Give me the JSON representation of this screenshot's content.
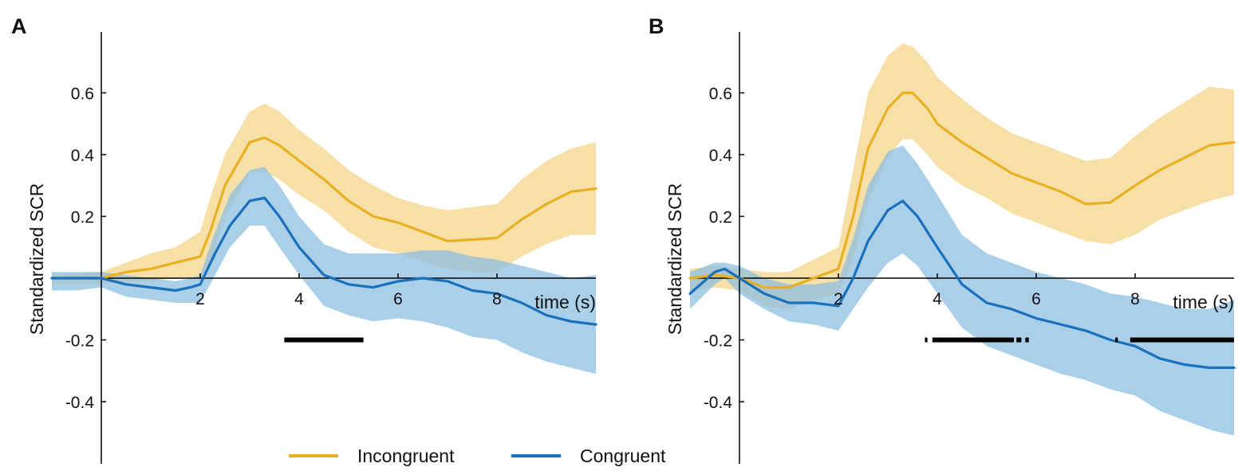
{
  "colors": {
    "incongruent": "#E8B124",
    "incongruent_band": "#F4D58A",
    "congruent": "#1A70BA",
    "congruent_band": "#8DBFE2",
    "significance": "#000000",
    "axis": "#000000"
  },
  "chart_data": [
    {
      "type": "line",
      "panel_label": "A",
      "ylabel": "Standardized SCR",
      "xlabel": "time (s)",
      "xlim": [
        -1,
        10
      ],
      "ylim": [
        -0.6,
        0.8
      ],
      "x_ticks": [
        2,
        4,
        6,
        8
      ],
      "y_ticks": [
        0.6,
        0.4,
        0.2,
        -0.2,
        -0.4
      ],
      "x_tick_labels": [
        "2",
        "4",
        "6",
        "8"
      ],
      "y_tick_labels": [
        "0.6",
        "0.4",
        "0.2",
        "-0.2",
        "-0.4"
      ],
      "grid": false,
      "series": [
        {
          "name": "Incongruent",
          "key": "incongruent",
          "x": [
            -1,
            0,
            0.5,
            1,
            1.5,
            2,
            2.2,
            2.5,
            3,
            3.3,
            3.6,
            4,
            4.5,
            5,
            5.5,
            6,
            6.5,
            7,
            7.5,
            8,
            8.5,
            9,
            9.5,
            10
          ],
          "mean": [
            0.0,
            0.0,
            0.02,
            0.03,
            0.05,
            0.07,
            0.15,
            0.3,
            0.44,
            0.455,
            0.43,
            0.38,
            0.32,
            0.25,
            0.2,
            0.18,
            0.15,
            0.12,
            0.125,
            0.13,
            0.19,
            0.24,
            0.28,
            0.29
          ],
          "upper": [
            0.01,
            0.02,
            0.05,
            0.08,
            0.1,
            0.15,
            0.26,
            0.4,
            0.54,
            0.565,
            0.54,
            0.48,
            0.42,
            0.35,
            0.3,
            0.26,
            0.235,
            0.22,
            0.23,
            0.24,
            0.32,
            0.38,
            0.42,
            0.44
          ],
          "lower": [
            -0.02,
            -0.02,
            -0.01,
            -0.01,
            0.0,
            0.0,
            0.04,
            0.2,
            0.34,
            0.345,
            0.32,
            0.27,
            0.22,
            0.15,
            0.1,
            0.08,
            0.055,
            0.03,
            0.02,
            0.02,
            0.07,
            0.11,
            0.14,
            0.14
          ]
        },
        {
          "name": "Congruent",
          "key": "congruent",
          "x": [
            -1,
            -0.5,
            0,
            0.5,
            1,
            1.5,
            1.8,
            2,
            2.3,
            2.6,
            3,
            3.3,
            3.6,
            4,
            4.5,
            5,
            5.5,
            6,
            6.5,
            7,
            7.5,
            8,
            8.5,
            9,
            9.5,
            10
          ],
          "mean": [
            0.0,
            0.0,
            0.0,
            -0.02,
            -0.03,
            -0.04,
            -0.03,
            -0.02,
            0.08,
            0.17,
            0.25,
            0.26,
            0.2,
            0.1,
            0.01,
            -0.02,
            -0.03,
            -0.01,
            0.0,
            -0.01,
            -0.04,
            -0.05,
            -0.08,
            -0.12,
            -0.14,
            -0.15
          ],
          "upper": [
            0.02,
            0.02,
            0.02,
            0.01,
            0.0,
            -0.01,
            0.0,
            0.01,
            0.15,
            0.27,
            0.35,
            0.36,
            0.3,
            0.2,
            0.11,
            0.08,
            0.08,
            0.08,
            0.09,
            0.09,
            0.07,
            0.06,
            0.04,
            0.02,
            0.0,
            0.01
          ],
          "lower": [
            -0.04,
            -0.04,
            -0.03,
            -0.06,
            -0.07,
            -0.08,
            -0.08,
            -0.08,
            0.01,
            0.1,
            0.17,
            0.17,
            0.1,
            0.01,
            -0.09,
            -0.12,
            -0.14,
            -0.13,
            -0.14,
            -0.16,
            -0.19,
            -0.2,
            -0.24,
            -0.27,
            -0.29,
            -0.31
          ]
        }
      ],
      "significance_bars": [
        [
          3.7,
          5.3
        ]
      ],
      "significance_y": -0.2
    },
    {
      "type": "line",
      "panel_label": "B",
      "ylabel": "Standardized SCR",
      "xlabel": "time (s)",
      "xlim": [
        -1,
        10
      ],
      "ylim": [
        -0.6,
        0.8
      ],
      "x_ticks": [
        2,
        4,
        6,
        8
      ],
      "y_ticks": [
        0.6,
        0.4,
        0.2,
        -0.2,
        -0.4
      ],
      "x_tick_labels": [
        "2",
        "4",
        "6",
        "8"
      ],
      "y_tick_labels": [
        "0.6",
        "0.4",
        "0.2",
        "-0.2",
        "-0.4"
      ],
      "grid": false,
      "series": [
        {
          "name": "Incongruent",
          "key": "incongruent",
          "x": [
            -1,
            -0.5,
            0,
            0.5,
            1,
            1.5,
            2,
            2.3,
            2.6,
            3,
            3.3,
            3.5,
            3.8,
            4,
            4.5,
            5,
            5.5,
            6,
            6.5,
            7,
            7.5,
            8,
            8.5,
            9,
            9.5,
            10
          ],
          "mean": [
            0.0,
            0.01,
            0.0,
            -0.03,
            -0.03,
            0.0,
            0.03,
            0.2,
            0.42,
            0.55,
            0.6,
            0.6,
            0.55,
            0.5,
            0.44,
            0.39,
            0.34,
            0.31,
            0.28,
            0.24,
            0.245,
            0.3,
            0.35,
            0.39,
            0.43,
            0.44
          ],
          "upper": [
            0.03,
            0.04,
            0.03,
            0.02,
            0.02,
            0.06,
            0.1,
            0.35,
            0.6,
            0.72,
            0.76,
            0.75,
            0.7,
            0.65,
            0.58,
            0.52,
            0.47,
            0.44,
            0.41,
            0.38,
            0.39,
            0.46,
            0.52,
            0.57,
            0.62,
            0.61
          ],
          "lower": [
            -0.04,
            -0.03,
            -0.04,
            -0.09,
            -0.1,
            -0.07,
            -0.05,
            0.06,
            0.25,
            0.39,
            0.45,
            0.45,
            0.4,
            0.36,
            0.3,
            0.26,
            0.21,
            0.18,
            0.15,
            0.12,
            0.11,
            0.14,
            0.19,
            0.22,
            0.25,
            0.27
          ]
        },
        {
          "name": "Congruent",
          "key": "congruent",
          "x": [
            -1,
            -0.5,
            -0.3,
            0,
            0.5,
            1,
            1.5,
            2,
            2.3,
            2.6,
            3,
            3.3,
            3.6,
            4,
            4.5,
            5,
            5.5,
            6,
            6.5,
            7,
            7.5,
            8,
            8.5,
            9,
            9.5,
            10
          ],
          "mean": [
            -0.05,
            0.02,
            0.03,
            0.0,
            -0.05,
            -0.08,
            -0.08,
            -0.09,
            0.0,
            0.12,
            0.22,
            0.25,
            0.2,
            0.1,
            -0.02,
            -0.08,
            -0.1,
            -0.13,
            -0.15,
            -0.17,
            -0.2,
            -0.22,
            -0.26,
            -0.28,
            -0.29,
            -0.29
          ],
          "upper": [
            0.02,
            0.05,
            0.05,
            0.04,
            0.0,
            -0.02,
            -0.02,
            -0.01,
            0.13,
            0.3,
            0.41,
            0.43,
            0.37,
            0.27,
            0.14,
            0.08,
            0.05,
            0.02,
            0.0,
            -0.02,
            -0.05,
            -0.06,
            -0.08,
            -0.1,
            -0.1,
            -0.07
          ],
          "lower": [
            -0.1,
            -0.02,
            0.0,
            -0.05,
            -0.1,
            -0.14,
            -0.15,
            -0.17,
            -0.1,
            -0.03,
            0.05,
            0.08,
            0.04,
            -0.05,
            -0.16,
            -0.22,
            -0.25,
            -0.28,
            -0.31,
            -0.33,
            -0.36,
            -0.38,
            -0.43,
            -0.46,
            -0.49,
            -0.51
          ]
        }
      ],
      "significance_bars": [
        [
          3.75,
          3.8
        ],
        [
          3.9,
          5.55
        ],
        [
          5.6,
          5.7
        ],
        [
          5.78,
          5.85
        ],
        [
          7.6,
          7.65
        ],
        [
          7.9,
          10
        ]
      ],
      "significance_y": -0.2
    }
  ],
  "legend": {
    "items": [
      {
        "label": "Incongruent",
        "key": "incongruent"
      },
      {
        "label": "Congruent",
        "key": "congruent"
      }
    ],
    "placement": "bottom-center"
  }
}
